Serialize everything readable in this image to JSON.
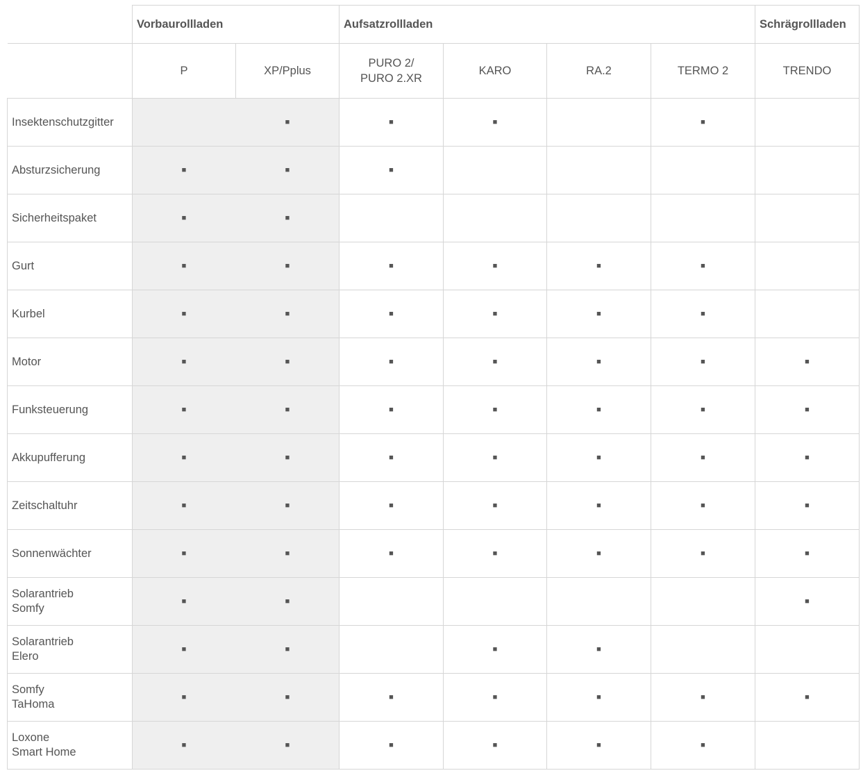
{
  "table": {
    "groups": [
      {
        "title": "Vorbaurollladen",
        "models": [
          "P",
          "XP/Pplus"
        ]
      },
      {
        "title": "Aufsatzrollladen",
        "models": [
          "PURO 2/\nPURO 2.XR",
          "KARO",
          "RA.2",
          "TERMO 2"
        ]
      },
      {
        "title": "Schrägrollladen",
        "models": [
          "TRENDO"
        ]
      }
    ],
    "rows": [
      {
        "label": "Insektenschutzgitter",
        "cells": [
          null,
          "■",
          "■",
          "■",
          null,
          "■",
          null
        ]
      },
      {
        "label": "Absturzsicherung",
        "cells": [
          "■",
          "■",
          "■",
          null,
          null,
          null,
          null
        ]
      },
      {
        "label": "Sicherheitspaket",
        "cells": [
          "■",
          "■",
          null,
          null,
          null,
          null,
          null
        ]
      },
      {
        "label": "Gurt",
        "cells": [
          "■",
          "■",
          "■",
          "■",
          "■",
          "■",
          null
        ]
      },
      {
        "label": "Kurbel",
        "cells": [
          "■",
          "■",
          "■",
          "■",
          "■",
          "■",
          null
        ]
      },
      {
        "label": "Motor",
        "cells": [
          "■",
          "■",
          "■",
          "■",
          "■",
          "■",
          "■"
        ]
      },
      {
        "label": "Funksteuerung",
        "cells": [
          "■",
          "■",
          "■",
          "■",
          "■",
          "■",
          "■"
        ]
      },
      {
        "label": "Akkupufferung",
        "cells": [
          "■",
          "■",
          "■",
          "■",
          "■",
          "■",
          "■"
        ]
      },
      {
        "label": "Zeitschaltuhr",
        "cells": [
          "■",
          "■",
          "■",
          "■",
          "■",
          "■",
          "■"
        ]
      },
      {
        "label": "Sonnenwächter",
        "cells": [
          "■",
          "■",
          "■",
          "■",
          "■",
          "■",
          "■"
        ]
      },
      {
        "label": "Solarantrieb\nSomfy",
        "cells": [
          "■",
          "■",
          null,
          null,
          null,
          null,
          "■"
        ]
      },
      {
        "label": "Solarantrieb\nElero",
        "cells": [
          "■",
          "■",
          null,
          "■",
          "■",
          null,
          null
        ]
      },
      {
        "label": "Somfy\nTaHoma",
        "cells": [
          "■",
          "■",
          "■",
          "■",
          "■",
          "■",
          "■"
        ]
      },
      {
        "label": "Loxone\nSmart Home",
        "cells": [
          "■",
          "■",
          "■",
          "■",
          "■",
          "■",
          null
        ]
      }
    ]
  }
}
